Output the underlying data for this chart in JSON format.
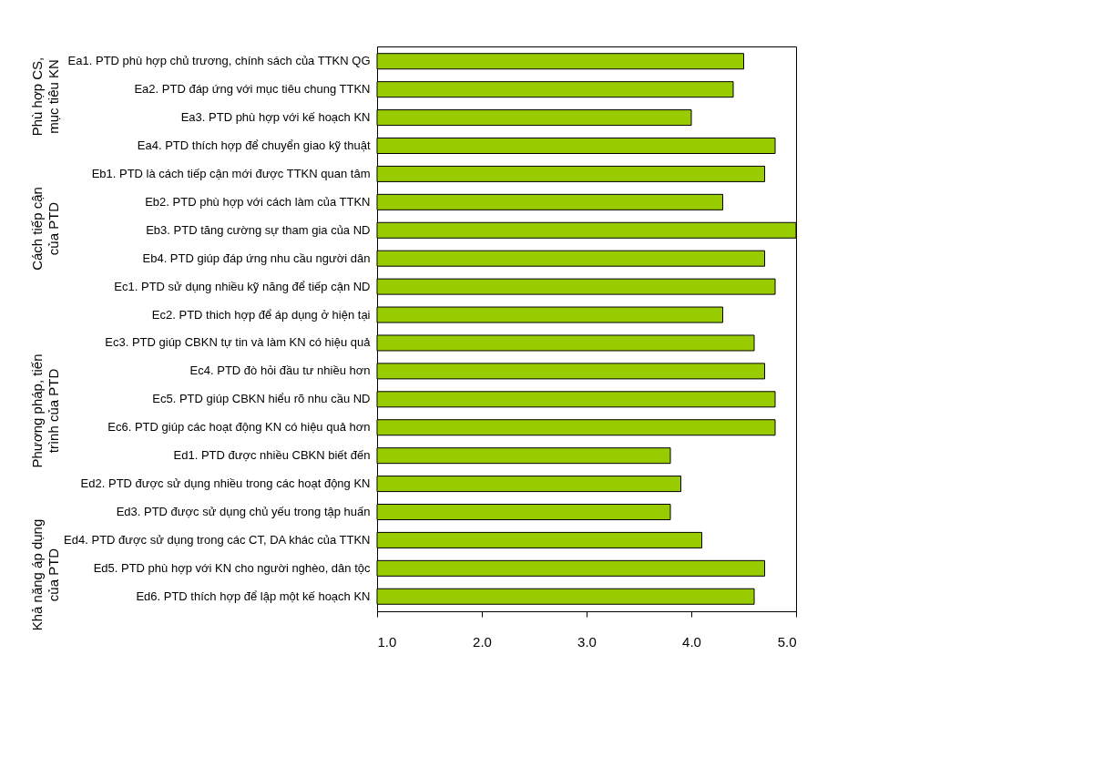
{
  "chart_data": {
    "type": "bar",
    "orientation": "horizontal",
    "categories": [
      "Ea1. PTD phù hợp chủ trương, chính sách của TTKN QG",
      "Ea2. PTD đáp ứng với mục tiêu chung TTKN",
      "Ea3. PTD phù hợp với kế hoạch KN",
      "Ea4. PTD thích hợp để chuyển giao kỹ thuật",
      "Eb1. PTD là cách tiếp cận mới được TTKN quan tâm",
      "Eb2. PTD phù hợp với cách làm của TTKN",
      "Eb3. PTD tăng cường sự tham gia của ND",
      "Eb4. PTD giúp đáp ứng nhu cầu người dân",
      "Ec1. PTD sử dụng nhiều kỹ năng để tiếp cận ND",
      "Ec2. PTD thich hợp để áp dụng ở hiện tại",
      "Ec3. PTD giúp CBKN tự tin và làm KN có hiệu quả",
      "Ec4. PTD đò hỏi đầu tư nhiều hơn",
      "Ec5. PTD giúp CBKN hiểu rõ nhu cầu ND",
      "Ec6. PTD giúp các hoạt động KN có hiệu quả hơn",
      "Ed1. PTD được nhiều CBKN biết đến",
      "Ed2. PTD được sử dụng nhiều trong các hoạt động KN",
      "Ed3. PTD được sử dụng chủ yếu trong tập huấn",
      "Ed4. PTD được sử dụng trong các CT, DA khác của TTKN",
      "Ed5. PTD phù hợp với KN cho người nghèo, dân tộc",
      "Ed6. PTD thích hợp để lập một kế hoạch KN"
    ],
    "values": [
      4.5,
      4.4,
      4.0,
      4.8,
      4.7,
      4.3,
      5.0,
      4.7,
      4.8,
      4.3,
      4.6,
      4.7,
      4.8,
      4.8,
      3.8,
      3.9,
      3.8,
      4.1,
      4.7,
      4.6
    ],
    "color": "#99cc00",
    "xlim": [
      1,
      5
    ],
    "xticks": [
      {
        "value": 1,
        "label": "1.0"
      },
      {
        "value": 2,
        "label": "2.0"
      },
      {
        "value": 3,
        "label": "3.0"
      },
      {
        "value": 4,
        "label": "4.0"
      },
      {
        "value": 5,
        "label": "5.0"
      }
    ],
    "grid": false,
    "annotations": [
      "Phù hợp CS,\nmục tiêu KN",
      "Cách tiếp cận\ncủa PTD",
      "Phương pháp, tiến\ntrình của PTD",
      "Khả năng áp dụng\ncủa PTD"
    ]
  }
}
